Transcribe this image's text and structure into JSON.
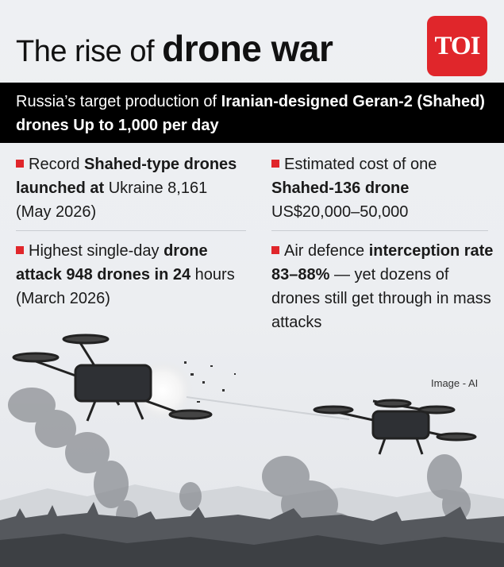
{
  "header": {
    "title_light": "The rise of",
    "title_heavy": "drone war",
    "logo_text": "TOI"
  },
  "banner": {
    "prefix": "Russia’s target production of ",
    "bold1": "Iranian-designed Geran-2 (Shahed) drones Up to 1,000 per day"
  },
  "stats": [
    {
      "pre": "Record ",
      "bold": "Shahed-type drones launched at",
      "post": " Ukraine 8,161 (May 2026)"
    },
    {
      "pre": "Estimated cost of one ",
      "bold": "Shahed-136 drone",
      "post": " US$20,000–50,000"
    },
    {
      "pre": "Highest single-day ",
      "bold": "drone attack 948 drones in 24",
      "post": " hours (March 2026)"
    },
    {
      "pre": "Air defence ",
      "bold": "interception rate 83–88%",
      "post": " — yet dozens of drones still get through in mass attacks"
    }
  ],
  "credit": "Image - AI",
  "colors": {
    "accent": "#e0262b",
    "banner_bg": "#000000",
    "background": "#eceef1"
  },
  "icons": {
    "bullet": "red-square-icon"
  }
}
